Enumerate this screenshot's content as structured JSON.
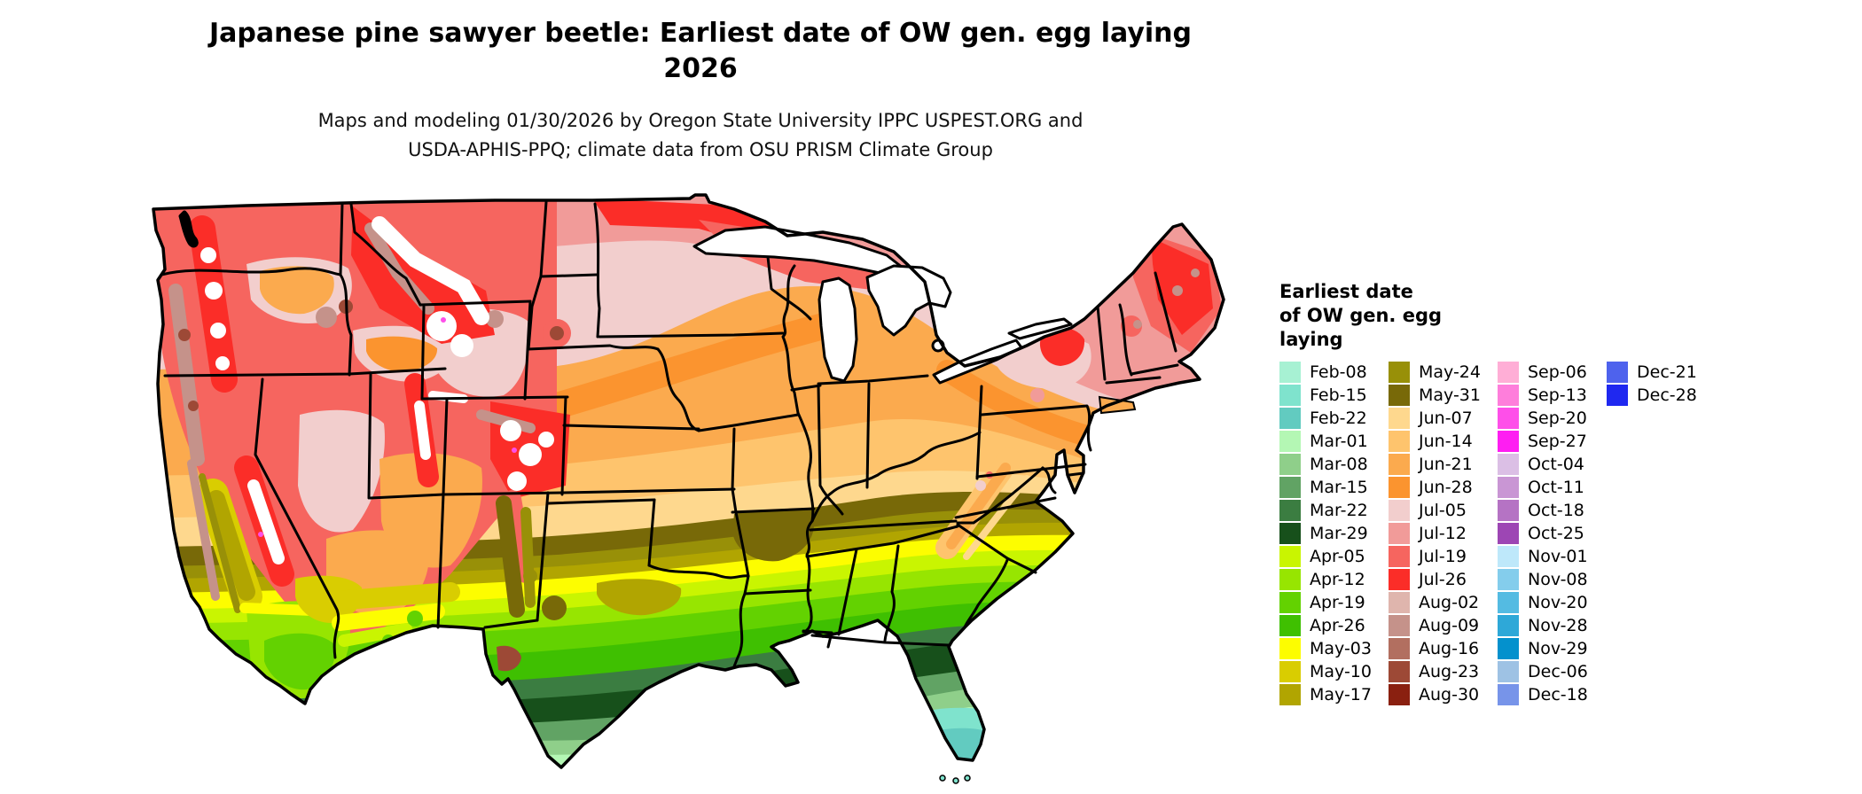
{
  "title": {
    "line1": "Japanese pine sawyer beetle: Earliest date of OW gen. egg laying",
    "line2": "2026"
  },
  "subtitle": {
    "line1": "Maps and modeling 01/30/2026 by Oregon State University IPPC USPEST.ORG and",
    "line2": "USDA-APHIS-PPQ; climate data from OSU PRISM Climate Group"
  },
  "legend": {
    "title_lines": [
      "Earliest date",
      "of OW gen. egg",
      "laying"
    ],
    "columns": [
      {
        "entries": [
          {
            "label": "Feb-08",
            "color": "#a7f1d3"
          },
          {
            "label": "Feb-15",
            "color": "#7fe3cd"
          },
          {
            "label": "Feb-22",
            "color": "#62cbc0"
          },
          {
            "label": "Mar-01",
            "color": "#b4f7b4"
          },
          {
            "label": "Mar-08",
            "color": "#8fcf8a"
          },
          {
            "label": "Mar-15",
            "color": "#61a364"
          },
          {
            "label": "Mar-22",
            "color": "#3b7d41"
          },
          {
            "label": "Mar-29",
            "color": "#17501b"
          },
          {
            "label": "Apr-05",
            "color": "#c9f501"
          },
          {
            "label": "Apr-12",
            "color": "#97e501"
          },
          {
            "label": "Apr-19",
            "color": "#63d201"
          },
          {
            "label": "Apr-26",
            "color": "#3fc001"
          },
          {
            "label": "May-03",
            "color": "#fdfd00"
          },
          {
            "label": "May-10",
            "color": "#d9cd01"
          },
          {
            "label": "May-17",
            "color": "#b1a501"
          }
        ]
      },
      {
        "entries": [
          {
            "label": "May-24",
            "color": "#989008"
          },
          {
            "label": "May-31",
            "color": "#786908"
          },
          {
            "label": "Jun-07",
            "color": "#fed88e"
          },
          {
            "label": "Jun-14",
            "color": "#fec46d"
          },
          {
            "label": "Jun-21",
            "color": "#fbaa4e"
          },
          {
            "label": "Jun-28",
            "color": "#fb942f"
          },
          {
            "label": "Jul-05",
            "color": "#f2cecd"
          },
          {
            "label": "Jul-12",
            "color": "#f19b99"
          },
          {
            "label": "Jul-19",
            "color": "#f6655f"
          },
          {
            "label": "Jul-26",
            "color": "#fb2d28"
          },
          {
            "label": "Aug-02",
            "color": "#dfb5ad"
          },
          {
            "label": "Aug-09",
            "color": "#c5928a"
          },
          {
            "label": "Aug-16",
            "color": "#b26f60"
          },
          {
            "label": "Aug-23",
            "color": "#9d4936"
          },
          {
            "label": "Aug-30",
            "color": "#8a2010"
          }
        ]
      },
      {
        "entries": [
          {
            "label": "Sep-06",
            "color": "#ffaed6"
          },
          {
            "label": "Sep-13",
            "color": "#fe7edb"
          },
          {
            "label": "Sep-20",
            "color": "#fe4fe9"
          },
          {
            "label": "Sep-27",
            "color": "#fe1ef2"
          },
          {
            "label": "Oct-04",
            "color": "#dbbfe5"
          },
          {
            "label": "Oct-11",
            "color": "#c996d4"
          },
          {
            "label": "Oct-18",
            "color": "#b573c4"
          },
          {
            "label": "Oct-25",
            "color": "#9d46b4"
          },
          {
            "label": "Nov-01",
            "color": "#bee8fa"
          },
          {
            "label": "Nov-08",
            "color": "#84cdec"
          },
          {
            "label": "Nov-20",
            "color": "#54bbe2"
          },
          {
            "label": "Nov-28",
            "color": "#2ea8d8"
          },
          {
            "label": "Nov-29",
            "color": "#0491cd"
          },
          {
            "label": "Dec-06",
            "color": "#9ec2e4"
          },
          {
            "label": "Dec-18",
            "color": "#7794e9"
          }
        ]
      },
      {
        "entries": [
          {
            "label": "Dec-21",
            "color": "#4e62ed"
          },
          {
            "label": "Dec-28",
            "color": "#1f28f0"
          }
        ]
      }
    ]
  }
}
